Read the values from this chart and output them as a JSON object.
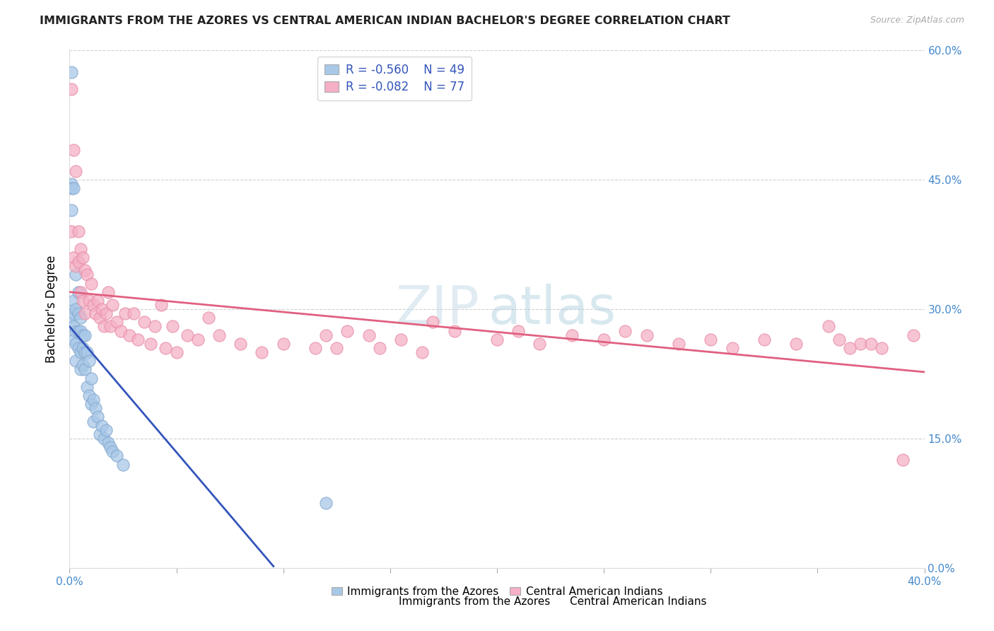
{
  "title": "IMMIGRANTS FROM THE AZORES VS CENTRAL AMERICAN INDIAN BACHELOR'S DEGREE CORRELATION CHART",
  "source": "Source: ZipAtlas.com",
  "ylabel": "Bachelor's Degree",
  "xlim": [
    0.0,
    0.4
  ],
  "ylim": [
    0.0,
    0.6
  ],
  "xticks": [
    0.0,
    0.05,
    0.1,
    0.15,
    0.2,
    0.25,
    0.3,
    0.35,
    0.4
  ],
  "xtick_labels_show": [
    "0.0%",
    "",
    "",
    "",
    "",
    "",
    "",
    "",
    "40.0%"
  ],
  "yticks": [
    0.0,
    0.15,
    0.3,
    0.45,
    0.6
  ],
  "ytick_labels_right": [
    "0.0%",
    "15.0%",
    "30.0%",
    "45.0%",
    "60.0%"
  ],
  "blue_R": -0.56,
  "blue_N": 49,
  "pink_R": -0.082,
  "pink_N": 77,
  "blue_color": "#a8c8e8",
  "pink_color": "#f5b0c5",
  "blue_edge_color": "#88aad0",
  "pink_edge_color": "#e890aa",
  "blue_line_color": "#3355bb",
  "pink_line_color": "#e06080",
  "watermark_zip": "ZIP",
  "watermark_atlas": "atlas",
  "legend_label_blue": "Immigrants from the Azores",
  "legend_label_pink": "Central American Indians",
  "blue_points_x": [
    0.001,
    0.001,
    0.001,
    0.001,
    0.001,
    0.002,
    0.002,
    0.002,
    0.002,
    0.002,
    0.003,
    0.003,
    0.003,
    0.003,
    0.003,
    0.004,
    0.004,
    0.004,
    0.004,
    0.005,
    0.005,
    0.005,
    0.005,
    0.006,
    0.006,
    0.006,
    0.007,
    0.007,
    0.007,
    0.008,
    0.008,
    0.009,
    0.009,
    0.01,
    0.01,
    0.011,
    0.011,
    0.012,
    0.013,
    0.014,
    0.015,
    0.016,
    0.017,
    0.018,
    0.019,
    0.02,
    0.022,
    0.025,
    0.12
  ],
  "blue_points_y": [
    0.575,
    0.445,
    0.44,
    0.415,
    0.29,
    0.44,
    0.31,
    0.295,
    0.28,
    0.265,
    0.34,
    0.3,
    0.275,
    0.26,
    0.24,
    0.32,
    0.295,
    0.275,
    0.255,
    0.29,
    0.275,
    0.25,
    0.23,
    0.27,
    0.255,
    0.235,
    0.27,
    0.25,
    0.23,
    0.25,
    0.21,
    0.24,
    0.2,
    0.22,
    0.19,
    0.195,
    0.17,
    0.185,
    0.175,
    0.155,
    0.165,
    0.15,
    0.16,
    0.145,
    0.14,
    0.135,
    0.13,
    0.12,
    0.075
  ],
  "pink_points_x": [
    0.001,
    0.001,
    0.002,
    0.002,
    0.003,
    0.003,
    0.004,
    0.004,
    0.005,
    0.005,
    0.006,
    0.006,
    0.007,
    0.007,
    0.008,
    0.009,
    0.01,
    0.011,
    0.012,
    0.013,
    0.014,
    0.015,
    0.016,
    0.017,
    0.018,
    0.019,
    0.02,
    0.022,
    0.024,
    0.026,
    0.028,
    0.03,
    0.032,
    0.035,
    0.038,
    0.04,
    0.043,
    0.045,
    0.048,
    0.05,
    0.055,
    0.06,
    0.065,
    0.07,
    0.08,
    0.09,
    0.1,
    0.115,
    0.12,
    0.125,
    0.13,
    0.14,
    0.145,
    0.155,
    0.165,
    0.17,
    0.18,
    0.2,
    0.21,
    0.22,
    0.235,
    0.25,
    0.26,
    0.27,
    0.285,
    0.3,
    0.31,
    0.325,
    0.34,
    0.355,
    0.36,
    0.365,
    0.37,
    0.375,
    0.38,
    0.39,
    0.395
  ],
  "pink_points_y": [
    0.555,
    0.39,
    0.485,
    0.36,
    0.46,
    0.35,
    0.39,
    0.355,
    0.37,
    0.32,
    0.36,
    0.31,
    0.345,
    0.295,
    0.34,
    0.31,
    0.33,
    0.305,
    0.295,
    0.31,
    0.29,
    0.3,
    0.28,
    0.295,
    0.32,
    0.28,
    0.305,
    0.285,
    0.275,
    0.295,
    0.27,
    0.295,
    0.265,
    0.285,
    0.26,
    0.28,
    0.305,
    0.255,
    0.28,
    0.25,
    0.27,
    0.265,
    0.29,
    0.27,
    0.26,
    0.25,
    0.26,
    0.255,
    0.27,
    0.255,
    0.275,
    0.27,
    0.255,
    0.265,
    0.25,
    0.285,
    0.275,
    0.265,
    0.275,
    0.26,
    0.27,
    0.265,
    0.275,
    0.27,
    0.26,
    0.265,
    0.255,
    0.265,
    0.26,
    0.28,
    0.265,
    0.255,
    0.26,
    0.26,
    0.255,
    0.125,
    0.27
  ]
}
